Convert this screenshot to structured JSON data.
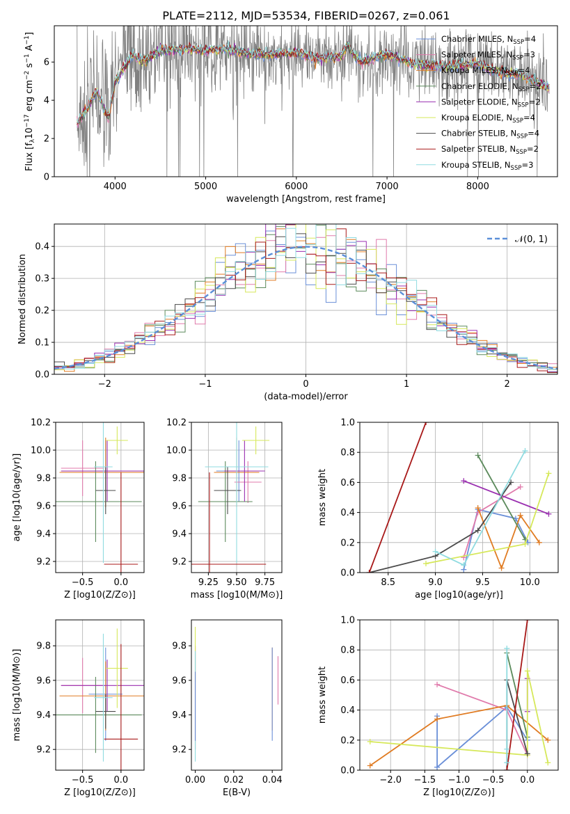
{
  "series_colors": [
    "#6a8fd8",
    "#e07aab",
    "#e07b22",
    "#5b8a5b",
    "#9a2fb0",
    "#d6e85a",
    "#4a4a4a",
    "#a81818",
    "#8fdbe0"
  ],
  "chart_data": [
    {
      "type": "line",
      "title": "PLATE=2112, MJD=53534, FIBERID=0267, z=0.061",
      "xlabel": "wavelength [Angstrom, rest frame]",
      "ylabel": "Flux [f",
      "ylabel_parts": [
        "Flux [f",
        "λ",
        "10",
        "−17",
        " erg cm",
        "−2",
        " s",
        "−1",
        " A",
        "−1",
        "]"
      ],
      "xlim": [
        3330,
        8880
      ],
      "ylim": [
        0,
        7.9
      ],
      "xticks": [
        4000,
        5000,
        6000,
        7000,
        8000
      ],
      "yticks": [
        0,
        2,
        4,
        6
      ],
      "legend_position": "right",
      "data_color": "#808080",
      "model_anchor_points": [
        [
          3580,
          2.8
        ],
        [
          3700,
          3.6
        ],
        [
          3800,
          4.5
        ],
        [
          3900,
          3.3
        ],
        [
          3930,
          3.1
        ],
        [
          4000,
          5.0
        ],
        [
          4100,
          5.7
        ],
        [
          4200,
          6.4
        ],
        [
          4300,
          6.0
        ],
        [
          4500,
          6.6
        ],
        [
          4800,
          6.7
        ],
        [
          5000,
          6.6
        ],
        [
          5200,
          6.7
        ],
        [
          5500,
          6.4
        ],
        [
          5800,
          6.4
        ],
        [
          6000,
          6.5
        ],
        [
          6200,
          6.2
        ],
        [
          6500,
          6.3
        ],
        [
          6563,
          6.9
        ],
        [
          6700,
          6.0
        ],
        [
          7000,
          6.4
        ],
        [
          7300,
          5.9
        ],
        [
          7600,
          5.8
        ],
        [
          8000,
          5.9
        ],
        [
          8200,
          5.5
        ],
        [
          8500,
          5.3
        ],
        [
          8800,
          4.6
        ]
      ],
      "series": [
        {
          "name": "Chabrier MILES, N",
          "n_ssp": "4"
        },
        {
          "name": "Salpeter MILES, N",
          "n_ssp": "3"
        },
        {
          "name": "Kroupa MILES, N",
          "n_ssp": "4"
        },
        {
          "name": "Chabrier ELODIE, N",
          "n_ssp": "2"
        },
        {
          "name": "Salpeter ELODIE, N",
          "n_ssp": "2"
        },
        {
          "name": "Kroupa ELODIE, N",
          "n_ssp": "4"
        },
        {
          "name": "Chabrier STELIB, N",
          "n_ssp": "4"
        },
        {
          "name": "Salpeter STELIB, N",
          "n_ssp": "2"
        },
        {
          "name": "Kroupa STELIB, N",
          "n_ssp": "3"
        }
      ],
      "legend_subscript": "SSP"
    },
    {
      "type": "line",
      "xlabel": "(data-model)/error",
      "ylabel": "Normed distribution",
      "xlim": [
        -2.5,
        2.5
      ],
      "ylim": [
        0,
        0.47
      ],
      "xticks": [
        -2,
        -1,
        0,
        1,
        2
      ],
      "yticks": [
        0.0,
        0.1,
        0.2,
        0.3,
        0.4
      ],
      "grid": true,
      "legend_position": "top-right",
      "reference_curve": {
        "name": "N(0,1)",
        "legend_text": "(0, 1)",
        "mean": 0,
        "sigma": 1,
        "color": "#5b8fd8"
      },
      "bin_width": 0.1,
      "series_note": "step histograms, one per model"
    },
    {
      "type": "scatter",
      "xlabel": "Z [log10(Z/Z⊙)]",
      "ylabel": "age [log10(age/yr)]",
      "xlim": [
        -0.85,
        0.3
      ],
      "ylim": [
        9.12,
        10.2
      ],
      "xticks": [
        -0.5,
        0.0
      ],
      "xtick_labels": [
        "−0.5",
        "0.0"
      ],
      "yticks": [
        9.2,
        9.4,
        9.6,
        9.8,
        10.0,
        10.2
      ],
      "grid": true,
      "errorbars": [
        {
          "series": 0,
          "x": -0.2,
          "y": 9.85,
          "xerr": 0.22,
          "yerr": 0.22
        },
        {
          "series": 1,
          "x": -0.5,
          "y": 9.87,
          "xerr": 0.28,
          "yerr": 0.2
        },
        {
          "series": 2,
          "x": -0.2,
          "y": 9.84,
          "xerr": 0.6,
          "yerr": 0.25
        },
        {
          "series": 3,
          "x": -0.33,
          "y": 9.63,
          "xerr": 0.6,
          "yerr": 0.29
        },
        {
          "series": 4,
          "x": -0.18,
          "y": 9.85,
          "xerr": 0.6,
          "yerr": 0.22
        },
        {
          "series": 5,
          "x": -0.05,
          "y": 10.07,
          "xerr": 0.14,
          "yerr": 0.1
        },
        {
          "series": 6,
          "x": -0.2,
          "y": 9.71,
          "xerr": 0.13,
          "yerr": 0.17
        },
        {
          "series": 7,
          "x": 0.0,
          "y": 9.18,
          "xerr": 0.22,
          "yerr": 0.66
        },
        {
          "series": 8,
          "x": -0.23,
          "y": 9.88,
          "xerr": 0.12,
          "yerr": 0.69
        }
      ]
    },
    {
      "type": "scatter",
      "xlabel": "mass [log10(M/M⊙)]",
      "ylabel": "",
      "xlim": [
        9.1,
        9.9
      ],
      "ylim": [
        9.12,
        10.2
      ],
      "xticks": [
        9.25,
        9.5,
        9.75
      ],
      "yticks": [
        9.2,
        9.4,
        9.6,
        9.8,
        10.0,
        10.2
      ],
      "grid": true,
      "errorbars": [
        {
          "series": 0,
          "x": 9.52,
          "y": 9.85,
          "xerr": 0.2,
          "yerr": 0.22
        },
        {
          "series": 1,
          "x": 9.6,
          "y": 9.77,
          "xerr": 0.12,
          "yerr": 0.15
        },
        {
          "series": 2,
          "x": 9.5,
          "y": 9.84,
          "xerr": 0.2,
          "yerr": 0.25
        },
        {
          "series": 3,
          "x": 9.4,
          "y": 9.63,
          "xerr": 0.24,
          "yerr": 0.29
        },
        {
          "series": 4,
          "x": 9.57,
          "y": 9.85,
          "xerr": 0.18,
          "yerr": 0.22
        },
        {
          "series": 5,
          "x": 9.67,
          "y": 10.07,
          "xerr": 0.12,
          "yerr": 0.1
        },
        {
          "series": 6,
          "x": 9.42,
          "y": 9.71,
          "xerr": 0.12,
          "yerr": 0.17
        },
        {
          "series": 7,
          "x": 9.26,
          "y": 9.18,
          "xerr": 0.5,
          "yerr": 0.66
        },
        {
          "series": 8,
          "x": 9.5,
          "y": 9.88,
          "xerr": 0.28,
          "yerr": 0.69
        }
      ]
    },
    {
      "type": "line",
      "xlabel": "age [log10(age/yr)]",
      "ylabel": "mass weight",
      "xlim": [
        8.2,
        10.3
      ],
      "ylim": [
        0,
        1.0
      ],
      "xticks": [
        8.5,
        9.0,
        9.5,
        10.0
      ],
      "yticks": [
        0.0,
        0.2,
        0.4,
        0.6,
        0.8,
        1.0
      ],
      "grid": true,
      "series": [
        {
          "series": 0,
          "points": [
            [
              9.3,
              0.02
            ],
            [
              9.45,
              0.42
            ],
            [
              9.85,
              0.36
            ],
            [
              9.98,
              0.2
            ]
          ]
        },
        {
          "series": 1,
          "points": [
            [
              9.3,
              0.1
            ],
            [
              9.45,
              0.4
            ],
            [
              9.9,
              0.57
            ]
          ]
        },
        {
          "series": 2,
          "points": [
            [
              9.45,
              0.43
            ],
            [
              9.7,
              0.03
            ],
            [
              9.9,
              0.38
            ],
            [
              10.1,
              0.2
            ]
          ]
        },
        {
          "series": 3,
          "points": [
            [
              9.45,
              0.78
            ],
            [
              9.95,
              0.22
            ]
          ]
        },
        {
          "series": 4,
          "points": [
            [
              9.3,
              0.61
            ],
            [
              10.2,
              0.39
            ]
          ]
        },
        {
          "series": 5,
          "points": [
            [
              8.9,
              0.06
            ],
            [
              9.95,
              0.19
            ],
            [
              10.2,
              0.66
            ]
          ]
        },
        {
          "series": 6,
          "points": [
            [
              8.3,
              0.0
            ],
            [
              9.0,
              0.11
            ],
            [
              9.45,
              0.28
            ],
            [
              9.8,
              0.6
            ]
          ]
        },
        {
          "series": 7,
          "points": [
            [
              8.3,
              0.0
            ],
            [
              8.9,
              1.0
            ]
          ]
        },
        {
          "series": 8,
          "points": [
            [
              9.0,
              0.14
            ],
            [
              9.3,
              0.05
            ],
            [
              9.95,
              0.81
            ]
          ]
        }
      ]
    },
    {
      "type": "scatter",
      "xlabel": "Z [log10(Z/Z⊙)]",
      "ylabel": "mass [log10(M/M⊙)]",
      "xlim": [
        -0.85,
        0.3
      ],
      "ylim": [
        9.08,
        9.95
      ],
      "xticks": [
        -0.5,
        0.0
      ],
      "xtick_labels": [
        "−0.5",
        "0.0"
      ],
      "yticks": [
        9.2,
        9.4,
        9.6,
        9.8
      ],
      "grid": true,
      "errorbars": [
        {
          "series": 0,
          "x": -0.2,
          "y": 9.52,
          "xerr": 0.22,
          "yerr": 0.27
        },
        {
          "series": 1,
          "x": -0.5,
          "y": 9.57,
          "xerr": 0.28,
          "yerr": 0.16
        },
        {
          "series": 2,
          "x": -0.2,
          "y": 9.51,
          "xerr": 0.6,
          "yerr": 0.2
        },
        {
          "series": 3,
          "x": -0.33,
          "y": 9.4,
          "xerr": 0.6,
          "yerr": 0.22
        },
        {
          "series": 4,
          "x": -0.18,
          "y": 9.57,
          "xerr": 0.6,
          "yerr": 0.15
        },
        {
          "series": 5,
          "x": -0.05,
          "y": 9.67,
          "xerr": 0.14,
          "yerr": 0.23
        },
        {
          "series": 6,
          "x": -0.2,
          "y": 9.42,
          "xerr": 0.13,
          "yerr": 0.1
        },
        {
          "series": 7,
          "x": 0.0,
          "y": 9.26,
          "xerr": 0.22,
          "yerr": 0.55
        },
        {
          "series": 8,
          "x": -0.23,
          "y": 9.5,
          "xerr": 0.12,
          "yerr": 0.37
        }
      ]
    },
    {
      "type": "scatter",
      "xlabel": "E(B-V)",
      "ylabel": "",
      "xlim": [
        -0.002,
        0.045
      ],
      "ylim": [
        9.08,
        9.95
      ],
      "xticks": [
        0.0,
        0.02,
        0.04
      ],
      "xtick_labels": [
        "0.00",
        "0.02",
        "0.04"
      ],
      "yticks": [
        9.2,
        9.4,
        9.6,
        9.8
      ],
      "errorbars": [
        {
          "series": 7,
          "x": 0.0,
          "y": 9.5,
          "xerr": 0.0,
          "yerr": 0.3
        },
        {
          "series": 5,
          "x": 0.0,
          "y": 9.75,
          "xerr": 0.0,
          "yerr": 0.16
        },
        {
          "series": 8,
          "x": 0.0,
          "y": 9.45,
          "xerr": 0.0,
          "yerr": 0.32
        },
        {
          "series": 0,
          "x": 0.0,
          "y": 9.45,
          "xerr": 0.0,
          "yerr": 0.2
        },
        {
          "series": 2,
          "x": 0.04,
          "y": 9.55,
          "xerr": 0.0,
          "yerr": 0.24
        },
        {
          "series": 0,
          "x": 0.04,
          "y": 9.52,
          "xerr": 0.0,
          "yerr": 0.27
        },
        {
          "series": 1,
          "x": 0.043,
          "y": 9.6,
          "xerr": 0.0,
          "yerr": 0.14
        }
      ]
    },
    {
      "type": "line",
      "xlabel": "Z [log10(Z/Z⊙)]",
      "ylabel": "mass weight",
      "xlim": [
        -2.45,
        0.45
      ],
      "ylim": [
        0,
        1.0
      ],
      "xticks": [
        -2.0,
        -1.5,
        -1.0,
        -0.5,
        0.0
      ],
      "xtick_labels": [
        "−2.0",
        "−1.5",
        "−1.0",
        "−0.5",
        "0.0"
      ],
      "yticks": [
        0.0,
        0.2,
        0.4,
        0.6,
        0.8,
        1.0
      ],
      "grid": true,
      "series": [
        {
          "series": 0,
          "points": [
            [
              -1.32,
              0.36
            ],
            [
              -1.32,
              0.02
            ],
            [
              -0.3,
              0.42
            ],
            [
              0.0,
              0.2
            ]
          ]
        },
        {
          "series": 1,
          "points": [
            [
              -1.32,
              0.57
            ],
            [
              -0.3,
              0.4
            ],
            [
              0.0,
              0.1
            ]
          ]
        },
        {
          "series": 2,
          "points": [
            [
              -2.3,
              0.03
            ],
            [
              -1.32,
              0.34
            ],
            [
              -0.3,
              0.43
            ],
            [
              0.3,
              0.2
            ]
          ]
        },
        {
          "series": 3,
          "points": [
            [
              -0.3,
              0.78
            ],
            [
              0.0,
              0.22
            ]
          ]
        },
        {
          "series": 4,
          "points": [
            [
              0.0,
              0.39
            ],
            [
              0.0,
              0.61
            ]
          ]
        },
        {
          "series": 5,
          "points": [
            [
              -2.3,
              0.19
            ],
            [
              0.0,
              0.1
            ],
            [
              0.0,
              0.66
            ],
            [
              0.3,
              0.05
            ]
          ]
        },
        {
          "series": 6,
          "points": [
            [
              -0.3,
              0.0
            ],
            [
              -0.3,
              0.6
            ],
            [
              0.0,
              0.11
            ]
          ]
        },
        {
          "series": 7,
          "points": [
            [
              -0.3,
              0.0
            ],
            [
              0.0,
              1.0
            ]
          ]
        },
        {
          "series": 8,
          "points": [
            [
              -0.3,
              0.14
            ],
            [
              -0.3,
              0.81
            ],
            [
              -0.3,
              0.05
            ]
          ]
        }
      ]
    }
  ]
}
